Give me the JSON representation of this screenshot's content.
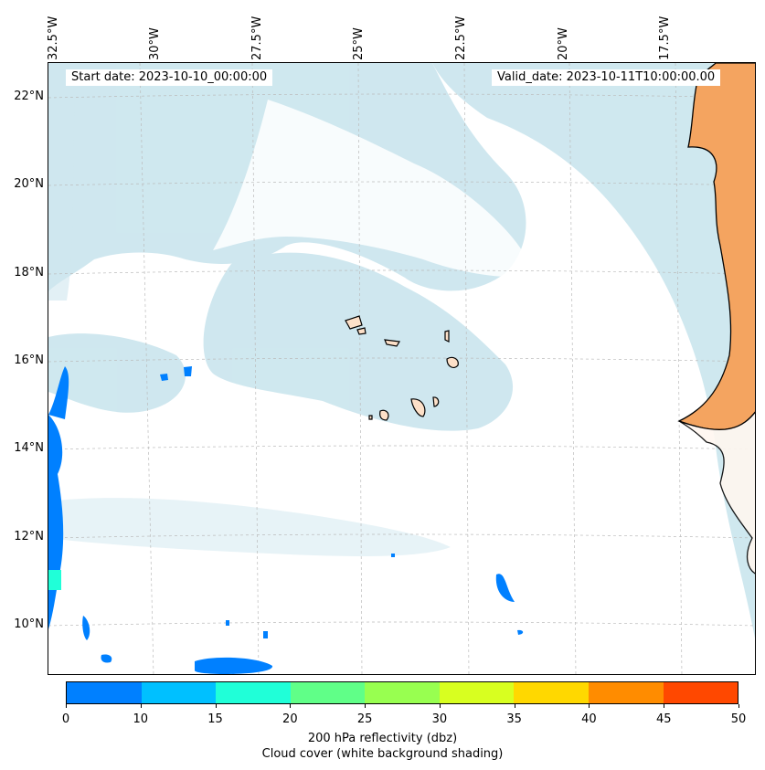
{
  "map": {
    "start_date": "Start date: 2023-10-10_00:00:00",
    "valid_date": "Valid_date: 2023-10-11T10:00:00.00",
    "lon_labels": [
      "32.5°W",
      "30°W",
      "27.5°W",
      "25°W",
      "22.5°W",
      "20°W",
      "17.5°W"
    ],
    "lat_labels": [
      "22°N",
      "20°N",
      "18°N",
      "16°N",
      "14°N",
      "12°N",
      "10°N"
    ],
    "ocean_color": "#ffffff",
    "cloud_color": "#bfe0ea",
    "land_color": "#f4a460",
    "island_color": "#fde0c8"
  },
  "colorbar": {
    "ticks": [
      "0",
      "10",
      "15",
      "20",
      "25",
      "30",
      "35",
      "40",
      "45",
      "50"
    ],
    "colors": [
      "#0080ff",
      "#00c0ff",
      "#20ffd8",
      "#60ff88",
      "#98ff50",
      "#d8ff20",
      "#ffd800",
      "#ff8c00",
      "#ff4800"
    ],
    "label_line1": "200 hPa reflectivity (dbz)",
    "label_line2": "Cloud cover (white background shading)"
  }
}
